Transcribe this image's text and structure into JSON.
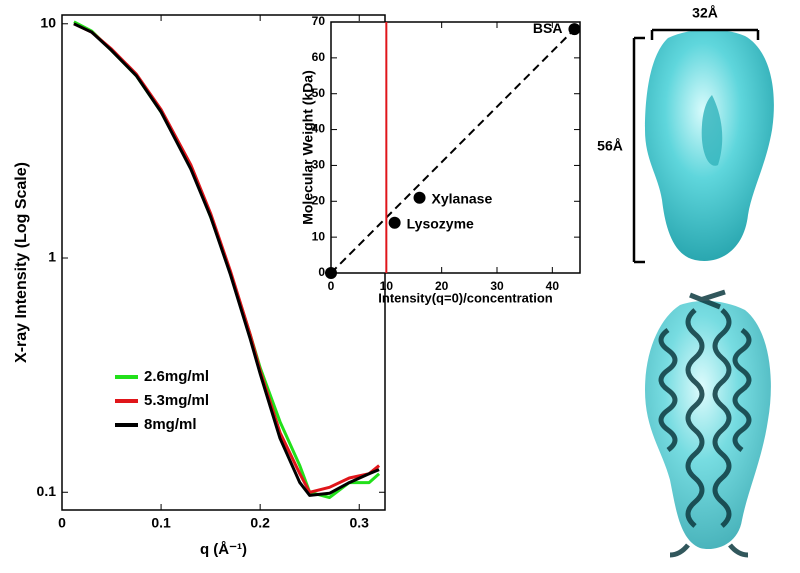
{
  "chart_data": [
    {
      "type": "line",
      "x_label": "q (Å⁻¹)",
      "y_label": "X-ray Intensity (Log Scale)",
      "log_y": true,
      "xlim": [
        0,
        0.326
      ],
      "ylim": [
        0.084,
        10.9
      ],
      "xticks": [
        0,
        0.1,
        0.2,
        0.3
      ],
      "yticks": [
        0.1,
        1,
        10
      ],
      "x": [
        0.012,
        0.03,
        0.05,
        0.075,
        0.1,
        0.13,
        0.15,
        0.17,
        0.19,
        0.2,
        0.22,
        0.24,
        0.25,
        0.27,
        0.29,
        0.31,
        0.32
      ],
      "series": [
        {
          "name": "2.6mg/ml",
          "color": "#22e01a",
          "values": [
            10.2,
            9.3,
            7.7,
            6.0,
            4.2,
            2.45,
            1.5,
            0.87,
            0.47,
            0.34,
            0.2,
            0.13,
            0.1,
            0.095,
            0.11,
            0.11,
            0.12
          ]
        },
        {
          "name": "5.3mg/ml",
          "color": "#e0151a",
          "values": [
            10,
            9.2,
            7.8,
            6.1,
            4.3,
            2.5,
            1.55,
            0.88,
            0.47,
            0.33,
            0.18,
            0.12,
            0.1,
            0.105,
            0.115,
            0.12,
            0.13
          ]
        },
        {
          "name": "8mg/ml",
          "color": "#000000",
          "values": [
            10,
            9.2,
            7.7,
            6.0,
            4.2,
            2.4,
            1.5,
            0.85,
            0.45,
            0.32,
            0.17,
            0.11,
            0.097,
            0.099,
            0.11,
            0.12,
            0.125
          ]
        }
      ]
    },
    {
      "type": "scatter",
      "x_label": "Intensity(q=0)/concentration",
      "y_label": "Molecular Weight (kDa)",
      "xlim": [
        0,
        45
      ],
      "ylim": [
        0,
        70
      ],
      "xticks": [
        0,
        10,
        20,
        30,
        40
      ],
      "yticks": [
        0,
        10,
        20,
        30,
        40,
        50,
        60,
        70
      ],
      "x": [
        0,
        11.5,
        16,
        44
      ],
      "values": [
        0,
        14,
        21,
        68
      ],
      "labels": [
        null,
        "Lysozyme",
        "Xylanase",
        "BSA"
      ],
      "color": "#000000",
      "fit_line_color": "#000000",
      "marker_x": 10,
      "marker_color": "#e0151a"
    }
  ],
  "model": {
    "width_label": "32Å",
    "height_label": "56Å"
  }
}
